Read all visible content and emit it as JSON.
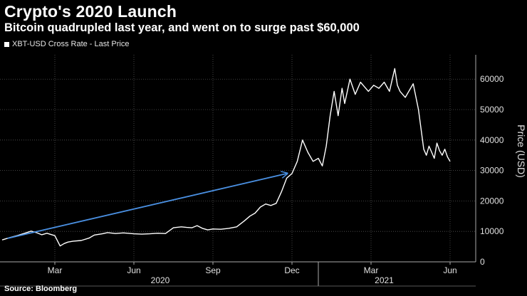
{
  "title": "Crypto's 2020 Launch",
  "subtitle": "Bitcoin quadrupled last year, and went on to surge past $60,000",
  "legend_label": "XBT-USD Cross Rate - Last Price",
  "source": "Source: Bloomberg",
  "colors": {
    "background": "#000000",
    "line": "#ffffff",
    "arrow": "#4a90e2",
    "grid": "#555555"
  },
  "chart_data": {
    "type": "line",
    "title": "Crypto's 2020 Launch",
    "ylabel": "Price (USD)",
    "xlabel": "",
    "ylim": [
      0,
      68000
    ],
    "xlim_months": [
      0,
      18
    ],
    "yticks": [
      0,
      10000,
      20000,
      30000,
      40000,
      50000,
      60000
    ],
    "ytick_labels": [
      "0",
      "10000",
      "20000",
      "30000",
      "40000",
      "50000",
      "60000"
    ],
    "month_ticks": [
      {
        "label": "Mar",
        "t": 2
      },
      {
        "label": "Jun",
        "t": 5
      },
      {
        "label": "Sep",
        "t": 8
      },
      {
        "label": "Dec",
        "t": 11
      },
      {
        "label": "Mar",
        "t": 14
      },
      {
        "label": "Jun",
        "t": 17
      }
    ],
    "year_labels": [
      {
        "label": "2020",
        "t": 6
      },
      {
        "label": "2021",
        "t": 14.5
      }
    ],
    "year_divider_t": 12,
    "series": [
      {
        "name": "XBT-USD Cross Rate - Last Price",
        "t": [
          0,
          0.3,
          0.6,
          0.9,
          1.1,
          1.3,
          1.5,
          1.7,
          2.0,
          2.2,
          2.35,
          2.5,
          2.7,
          3.0,
          3.3,
          3.5,
          3.8,
          4.0,
          4.3,
          4.6,
          5.0,
          5.3,
          5.6,
          5.9,
          6.2,
          6.5,
          6.8,
          7.0,
          7.2,
          7.4,
          7.6,
          7.8,
          8.0,
          8.3,
          8.6,
          8.9,
          9.2,
          9.4,
          9.6,
          9.8,
          10.0,
          10.2,
          10.4,
          10.6,
          10.8,
          11.0,
          11.2,
          11.4,
          11.6,
          11.8,
          12.0,
          12.15,
          12.3,
          12.45,
          12.6,
          12.75,
          12.9,
          13.0,
          13.2,
          13.4,
          13.6,
          13.7,
          13.9,
          14.1,
          14.3,
          14.5,
          14.7,
          14.9,
          15.0,
          15.1,
          15.3,
          15.5,
          15.6,
          15.8,
          16.0,
          16.1,
          16.2,
          16.3,
          16.4,
          16.5,
          16.6,
          16.7,
          16.8,
          16.9,
          17.0
        ],
        "values": [
          7200,
          8000,
          8700,
          9500,
          10100,
          9600,
          8900,
          9400,
          8600,
          5200,
          6000,
          6500,
          6800,
          7000,
          7800,
          8800,
          9200,
          9600,
          9300,
          9500,
          9200,
          9100,
          9200,
          9400,
          9300,
          11200,
          11500,
          11300,
          11200,
          11900,
          11000,
          10500,
          10800,
          10700,
          11000,
          11500,
          13500,
          15000,
          16000,
          18000,
          19000,
          18500,
          19200,
          23000,
          27500,
          29000,
          33000,
          40000,
          36000,
          33000,
          34000,
          31500,
          38000,
          48000,
          56000,
          48000,
          57000,
          52000,
          60000,
          55000,
          59000,
          58000,
          56000,
          58000,
          57000,
          59000,
          56000,
          63500,
          58000,
          56000,
          54000,
          57000,
          58500,
          50000,
          37000,
          35000,
          38000,
          36000,
          34000,
          39000,
          36500,
          35000,
          37000,
          34500,
          33000
        ]
      }
    ],
    "annotations": [
      {
        "type": "arrow",
        "from_t": 0.2,
        "from_value": 7700,
        "to_t": 10.8,
        "to_value": 29000
      }
    ]
  }
}
